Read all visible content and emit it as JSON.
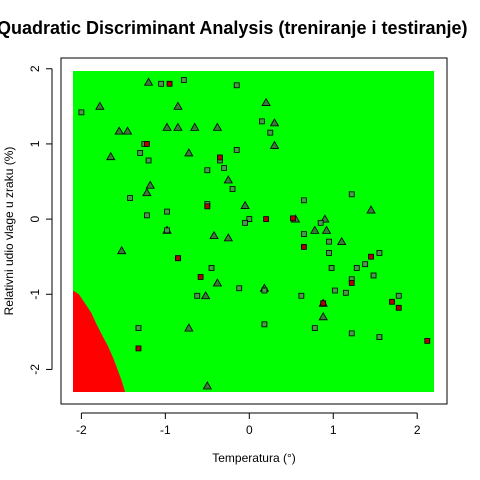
{
  "chart_data": {
    "type": "scatter",
    "title": "Quadratic Discriminant Analysis (treniranje i testiranje)",
    "xlabel": "Temperatura (°)",
    "ylabel": "Relativni udio vlage u zraku (%)",
    "xlim": [
      -2.1,
      2.2
    ],
    "ylim": [
      -2.3,
      1.97
    ],
    "xticks": [
      -2,
      -1,
      0,
      1,
      2
    ],
    "yticks": [
      -2,
      -1,
      0,
      1,
      2
    ],
    "region_colors": {
      "green": "#00ff00",
      "red": "#ff0000"
    },
    "red_region_boundary": [
      [
        -2.1,
        -0.95
      ],
      [
        -2.03,
        -1.0
      ],
      [
        -1.97,
        -1.1
      ],
      [
        -1.88,
        -1.25
      ],
      [
        -1.82,
        -1.4
      ],
      [
        -1.75,
        -1.55
      ],
      [
        -1.68,
        -1.7
      ],
      [
        -1.62,
        -1.85
      ],
      [
        -1.57,
        -2.0
      ],
      [
        -1.52,
        -2.15
      ],
      [
        -1.48,
        -2.3
      ]
    ],
    "series": [
      {
        "marker": "triangle",
        "points": [
          [
            -1.78,
            1.5
          ],
          [
            -1.55,
            1.17
          ],
          [
            -1.45,
            1.17
          ],
          [
            -1.65,
            0.83
          ],
          [
            -1.2,
            1.82
          ],
          [
            -0.85,
            1.5
          ],
          [
            -0.98,
            1.22
          ],
          [
            -0.85,
            1.22
          ],
          [
            -0.72,
            0.88
          ],
          [
            -0.65,
            1.22
          ],
          [
            -0.38,
            1.22
          ],
          [
            0.2,
            1.55
          ],
          [
            0.3,
            1.28
          ],
          [
            0.3,
            0.98
          ],
          [
            -0.25,
            0.52
          ],
          [
            -1.18,
            0.45
          ],
          [
            -1.22,
            0.35
          ],
          [
            -0.05,
            0.18
          ],
          [
            0.55,
            0.0
          ],
          [
            0.9,
            0.0
          ],
          [
            0.78,
            -0.15
          ],
          [
            0.92,
            -0.15
          ],
          [
            1.1,
            -0.3
          ],
          [
            1.45,
            0.12
          ],
          [
            -1.52,
            -0.42
          ],
          [
            -0.25,
            -0.25
          ],
          [
            -0.42,
            -0.22
          ],
          [
            -0.98,
            -0.15
          ],
          [
            0.18,
            -0.92
          ],
          [
            -0.52,
            -1.02
          ],
          [
            -0.38,
            -0.85
          ],
          [
            0.88,
            -1.12
          ],
          [
            0.88,
            -1.3
          ],
          [
            -0.72,
            -1.45
          ],
          [
            -0.5,
            -2.22
          ]
        ]
      },
      {
        "marker": "square",
        "points": [
          [
            -2.0,
            1.42
          ],
          [
            -1.05,
            1.8
          ],
          [
            -0.78,
            1.85
          ],
          [
            -0.15,
            1.78
          ],
          [
            -1.25,
            1.0
          ],
          [
            -1.3,
            0.88
          ],
          [
            -1.2,
            0.78
          ],
          [
            0.15,
            1.3
          ],
          [
            0.25,
            1.15
          ],
          [
            -0.15,
            0.92
          ],
          [
            -0.5,
            0.65
          ],
          [
            -0.3,
            0.68
          ],
          [
            -0.35,
            0.78
          ],
          [
            -0.2,
            0.4
          ],
          [
            -1.42,
            0.28
          ],
          [
            -1.22,
            0.05
          ],
          [
            -0.98,
            0.1
          ],
          [
            -0.98,
            -0.15
          ],
          [
            -0.5,
            0.2
          ],
          [
            0.0,
            0.0
          ],
          [
            -0.05,
            -0.05
          ],
          [
            0.65,
            0.25
          ],
          [
            1.22,
            0.33
          ],
          [
            0.85,
            -0.05
          ],
          [
            0.65,
            -0.2
          ],
          [
            0.95,
            -0.3
          ],
          [
            0.95,
            -0.45
          ],
          [
            0.98,
            -0.65
          ],
          [
            1.28,
            -0.65
          ],
          [
            1.38,
            -0.6
          ],
          [
            1.48,
            -0.75
          ],
          [
            1.55,
            -0.45
          ],
          [
            1.22,
            -0.8
          ],
          [
            1.15,
            -0.98
          ],
          [
            1.02,
            -0.95
          ],
          [
            1.78,
            -1.02
          ],
          [
            0.78,
            -1.45
          ],
          [
            -0.45,
            -0.65
          ],
          [
            -0.62,
            -1.02
          ],
          [
            -0.12,
            -0.92
          ],
          [
            0.18,
            -0.95
          ],
          [
            0.62,
            -1.02
          ],
          [
            0.18,
            -1.4
          ],
          [
            1.22,
            -1.52
          ],
          [
            1.55,
            -1.57
          ],
          [
            -1.32,
            -1.45
          ],
          [
            -0.85,
            -0.52
          ]
        ]
      },
      {
        "marker": "square-red",
        "points": [
          [
            -1.22,
            1.0
          ],
          [
            -0.95,
            1.8
          ],
          [
            -0.35,
            0.82
          ],
          [
            -0.5,
            0.17
          ],
          [
            0.2,
            0.0
          ],
          [
            0.52,
            0.01
          ],
          [
            0.65,
            -0.37
          ],
          [
            1.45,
            -0.5
          ],
          [
            1.22,
            -0.85
          ],
          [
            1.7,
            -1.1
          ],
          [
            1.78,
            -1.18
          ],
          [
            0.88,
            -1.12
          ],
          [
            2.12,
            -1.62
          ],
          [
            -0.58,
            -0.77
          ],
          [
            -1.32,
            -1.72
          ],
          [
            -0.85,
            -0.52
          ]
        ]
      }
    ]
  }
}
